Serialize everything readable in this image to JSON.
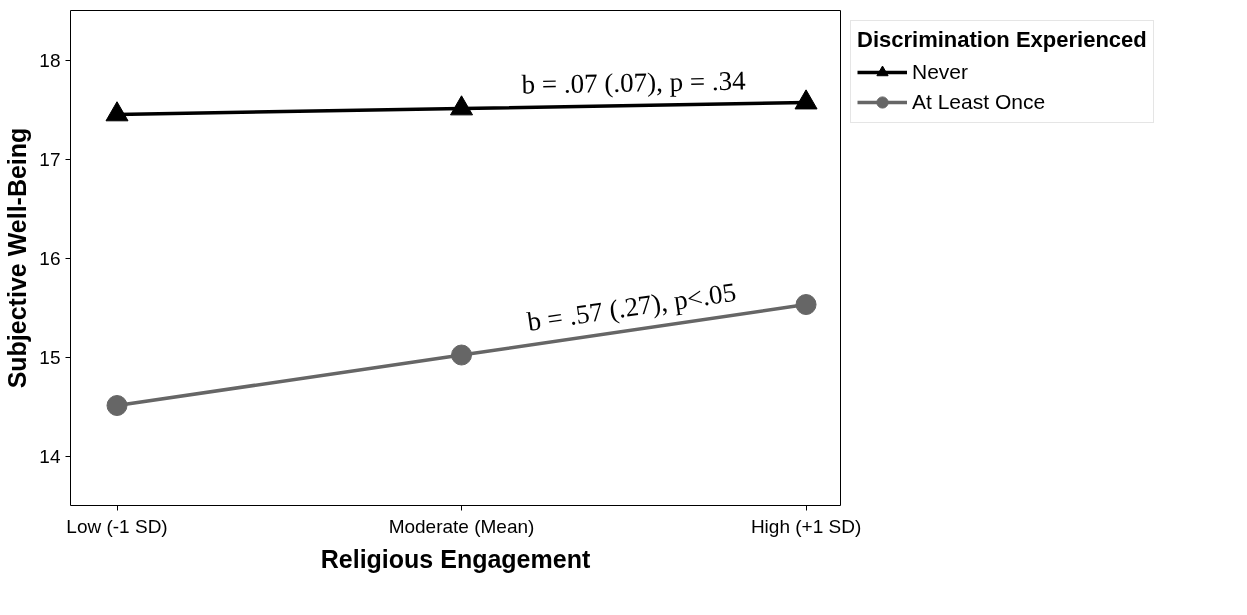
{
  "chart_data": {
    "type": "line",
    "xlabel": "Religious Engagement",
    "ylabel": "Subjective Well-Being",
    "legend_title": "Discrimination Experienced",
    "categories": [
      "Low (-1 SD)",
      "Moderate (Mean)",
      "High (+1 SD)"
    ],
    "series": [
      {
        "name": "Never",
        "color": "#000000",
        "marker": "triangle",
        "values": [
          17.45,
          17.51,
          17.57
        ]
      },
      {
        "name": "At Least Once",
        "color": "#666666",
        "marker": "circle",
        "values": [
          14.51,
          15.02,
          15.53
        ]
      }
    ],
    "annotations": [
      "b = .07 (.07), p = .34",
      "b = .57 (.27), p<.05"
    ],
    "ylim": [
      13.5,
      18.5
    ],
    "yticks": [
      14,
      15,
      16,
      17,
      18
    ],
    "grid": false,
    "legend": "top right",
    "line_style": "solid"
  }
}
